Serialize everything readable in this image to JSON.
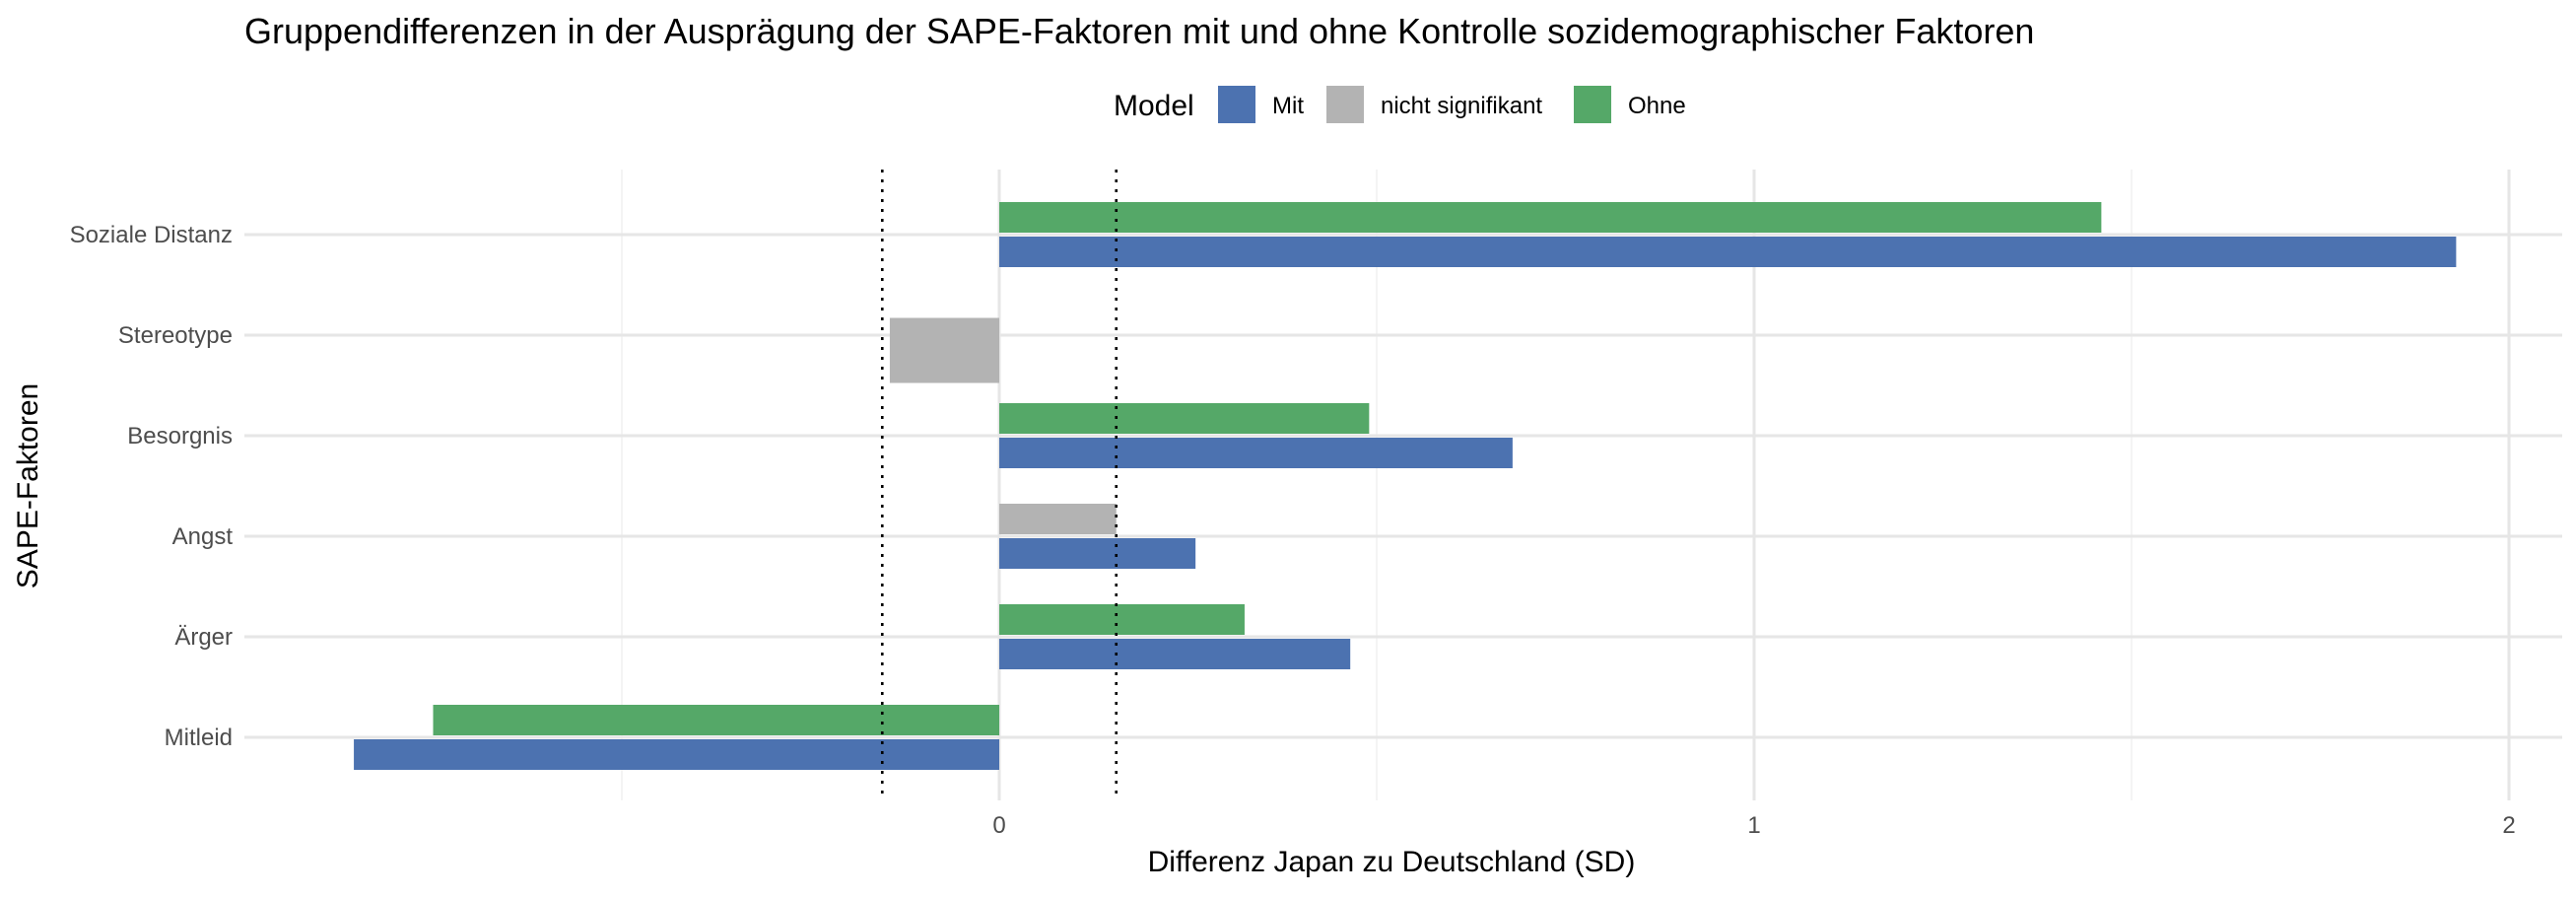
{
  "chart_data": {
    "type": "bar",
    "orientation": "horizontal",
    "title": "Gruppendifferenzen in der Ausprägung der SAPE-Faktoren mit und ohne Kontrolle sozidemographischer Faktoren",
    "xlabel": "Differenz Japan zu Deutschland (SD)",
    "ylabel": "SAPE-Faktoren",
    "xlim": [
      -1.0,
      2.08
    ],
    "xticks": [
      0,
      1,
      2
    ],
    "x_minor_ticks": [
      -0.5,
      0.5,
      1.5
    ],
    "grid": true,
    "legend": {
      "title": "Model",
      "position": "top",
      "entries": [
        {
          "label": "Mit",
          "color": "#4C72B0"
        },
        {
          "label": "nicht signifikant",
          "color": "#B3B3B3"
        },
        {
          "label": "Ohne",
          "color": "#55A868"
        }
      ]
    },
    "reference_lines": [
      -0.155,
      0.155
    ],
    "categories": [
      "Soziale Distanz",
      "Stereotype",
      "Besorgnis",
      "Angst",
      "Ärger",
      "Mitleid"
    ],
    "bars": [
      {
        "category": "Soziale Distanz",
        "position": "upper",
        "group": "Ohne",
        "value": 1.46
      },
      {
        "category": "Soziale Distanz",
        "position": "lower",
        "group": "Mit",
        "value": 1.93
      },
      {
        "category": "Stereotype",
        "position": "center",
        "group": "nicht signifikant",
        "value": -0.145
      },
      {
        "category": "Besorgnis",
        "position": "upper",
        "group": "Ohne",
        "value": 0.49
      },
      {
        "category": "Besorgnis",
        "position": "lower",
        "group": "Mit",
        "value": 0.68
      },
      {
        "category": "Angst",
        "position": "upper",
        "group": "nicht signifikant",
        "value": 0.155
      },
      {
        "category": "Angst",
        "position": "lower",
        "group": "Mit",
        "value": 0.26
      },
      {
        "category": "Ärger",
        "position": "upper",
        "group": "Ohne",
        "value": 0.325
      },
      {
        "category": "Ärger",
        "position": "lower",
        "group": "Mit",
        "value": 0.465
      },
      {
        "category": "Mitleid",
        "position": "upper",
        "group": "Ohne",
        "value": -0.75
      },
      {
        "category": "Mitleid",
        "position": "lower",
        "group": "Mit",
        "value": -0.855
      }
    ]
  }
}
